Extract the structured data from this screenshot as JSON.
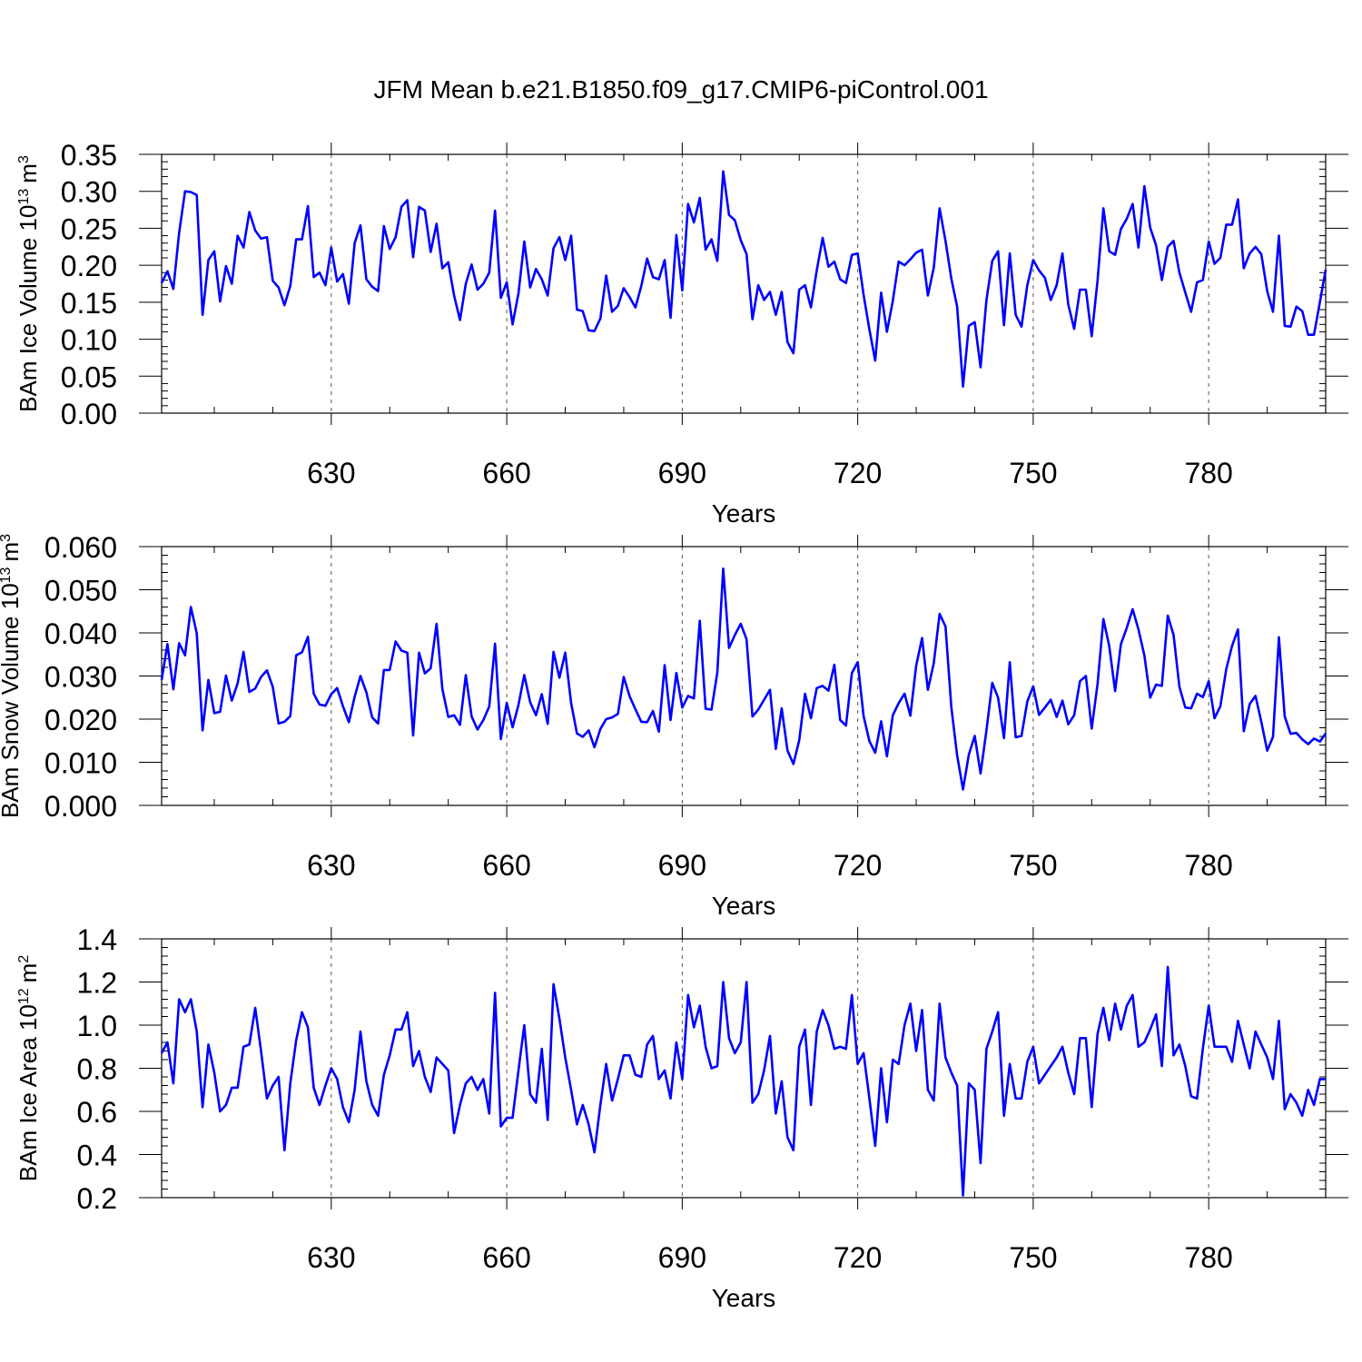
{
  "title": "JFM Mean b.e21.B1850.f09_g17.CMIP6-piControl.001",
  "line_color": "#0000ff",
  "chart_data": [
    {
      "type": "line",
      "xlabel": "Years",
      "ylabel": "BAm Ice Volume 10",
      "ylabel_exp": "13",
      "ylabel_unit": "m",
      "ylabel_unit_exp": "3",
      "xlim": [
        601,
        800
      ],
      "ylim": [
        0,
        0.35
      ],
      "xticks": [
        630,
        660,
        690,
        720,
        750,
        780
      ],
      "yticks": [
        "0.00",
        "0.05",
        "0.10",
        "0.15",
        "0.20",
        "0.25",
        "0.30",
        "0.35"
      ],
      "grid": "vertical dashed at major x ticks",
      "x_start": 601,
      "values": [
        0.176,
        0.192,
        0.168,
        0.244,
        0.3,
        0.299,
        0.295,
        0.133,
        0.207,
        0.219,
        0.151,
        0.199,
        0.175,
        0.24,
        0.224,
        0.272,
        0.247,
        0.236,
        0.238,
        0.179,
        0.17,
        0.146,
        0.172,
        0.235,
        0.235,
        0.28,
        0.184,
        0.19,
        0.173,
        0.224,
        0.178,
        0.188,
        0.148,
        0.23,
        0.254,
        0.181,
        0.171,
        0.165,
        0.253,
        0.222,
        0.238,
        0.279,
        0.288,
        0.211,
        0.279,
        0.274,
        0.218,
        0.256,
        0.196,
        0.204,
        0.159,
        0.126,
        0.175,
        0.201,
        0.167,
        0.175,
        0.19,
        0.274,
        0.156,
        0.177,
        0.12,
        0.162,
        0.232,
        0.17,
        0.195,
        0.181,
        0.159,
        0.223,
        0.238,
        0.207,
        0.24,
        0.14,
        0.138,
        0.112,
        0.111,
        0.128,
        0.186,
        0.137,
        0.145,
        0.169,
        0.157,
        0.143,
        0.172,
        0.209,
        0.184,
        0.181,
        0.207,
        0.129,
        0.241,
        0.166,
        0.283,
        0.258,
        0.291,
        0.221,
        0.235,
        0.206,
        0.327,
        0.268,
        0.261,
        0.234,
        0.215,
        0.127,
        0.173,
        0.153,
        0.164,
        0.133,
        0.164,
        0.096,
        0.081,
        0.167,
        0.173,
        0.143,
        0.193,
        0.237,
        0.198,
        0.205,
        0.181,
        0.176,
        0.214,
        0.216,
        0.16,
        0.113,
        0.071,
        0.163,
        0.11,
        0.152,
        0.205,
        0.2,
        0.208,
        0.217,
        0.221,
        0.159,
        0.197,
        0.277,
        0.233,
        0.182,
        0.144,
        0.036,
        0.118,
        0.123,
        0.062,
        0.153,
        0.206,
        0.219,
        0.119,
        0.216,
        0.133,
        0.117,
        0.173,
        0.207,
        0.193,
        0.183,
        0.153,
        0.173,
        0.216,
        0.147,
        0.114,
        0.167,
        0.167,
        0.104,
        0.18,
        0.277,
        0.219,
        0.214,
        0.249,
        0.263,
        0.283,
        0.224,
        0.307,
        0.251,
        0.227,
        0.18,
        0.225,
        0.233,
        0.19,
        0.163,
        0.137,
        0.177,
        0.18,
        0.232,
        0.202,
        0.21,
        0.255,
        0.255,
        0.289,
        0.196,
        0.216,
        0.225,
        0.215,
        0.165,
        0.137,
        0.24,
        0.118,
        0.117,
        0.144,
        0.138,
        0.106,
        0.106,
        0.15,
        0.194
      ]
    },
    {
      "type": "line",
      "xlabel": "Years",
      "ylabel": "BAm Snow Volume 10",
      "ylabel_exp": "13",
      "ylabel_unit": "m",
      "ylabel_unit_exp": "3",
      "xlim": [
        601,
        800
      ],
      "ylim": [
        0,
        0.06
      ],
      "xticks": [
        630,
        660,
        690,
        720,
        750,
        780
      ],
      "yticks": [
        "0.000",
        "0.010",
        "0.020",
        "0.030",
        "0.040",
        "0.050",
        "0.060"
      ],
      "grid": "vertical dashed at major x ticks",
      "x_start": 601,
      "values": [
        0.0291,
        0.0374,
        0.0269,
        0.0376,
        0.0348,
        0.046,
        0.0399,
        0.0174,
        0.0291,
        0.0214,
        0.0217,
        0.0301,
        0.0243,
        0.0283,
        0.0356,
        0.0263,
        0.0271,
        0.0298,
        0.0313,
        0.0275,
        0.019,
        0.0194,
        0.0207,
        0.0348,
        0.0355,
        0.0391,
        0.0259,
        0.0234,
        0.0231,
        0.0258,
        0.0272,
        0.023,
        0.0193,
        0.0252,
        0.03,
        0.0262,
        0.0204,
        0.019,
        0.0314,
        0.0314,
        0.038,
        0.0359,
        0.0354,
        0.0162,
        0.0354,
        0.0306,
        0.0318,
        0.0421,
        0.027,
        0.0205,
        0.0209,
        0.0187,
        0.0302,
        0.0206,
        0.0176,
        0.0198,
        0.0229,
        0.0375,
        0.0154,
        0.0238,
        0.0181,
        0.0233,
        0.0302,
        0.0239,
        0.0209,
        0.0258,
        0.0189,
        0.0356,
        0.0296,
        0.0354,
        0.0237,
        0.0167,
        0.0159,
        0.0174,
        0.0135,
        0.0177,
        0.02,
        0.0204,
        0.0212,
        0.0298,
        0.0253,
        0.0223,
        0.0194,
        0.0193,
        0.0219,
        0.0171,
        0.0325,
        0.0198,
        0.0307,
        0.0227,
        0.0254,
        0.0248,
        0.0428,
        0.0224,
        0.0222,
        0.0308,
        0.0549,
        0.0365,
        0.0395,
        0.0421,
        0.0385,
        0.0206,
        0.0222,
        0.0245,
        0.0268,
        0.0131,
        0.0225,
        0.0127,
        0.0096,
        0.0151,
        0.0259,
        0.0202,
        0.0272,
        0.0277,
        0.0266,
        0.0326,
        0.0198,
        0.0185,
        0.0307,
        0.0332,
        0.0207,
        0.0149,
        0.0122,
        0.0195,
        0.0114,
        0.0209,
        0.0237,
        0.0259,
        0.0208,
        0.0324,
        0.0388,
        0.0268,
        0.033,
        0.0444,
        0.0415,
        0.0228,
        0.0116,
        0.0037,
        0.0118,
        0.0161,
        0.0074,
        0.0174,
        0.0284,
        0.025,
        0.0156,
        0.0332,
        0.0158,
        0.0161,
        0.0241,
        0.0276,
        0.021,
        0.0227,
        0.0245,
        0.0205,
        0.0243,
        0.0188,
        0.0209,
        0.0288,
        0.03,
        0.0178,
        0.0282,
        0.0432,
        0.037,
        0.0265,
        0.0374,
        0.0412,
        0.0455,
        0.0408,
        0.0348,
        0.025,
        0.028,
        0.0277,
        0.044,
        0.0395,
        0.0275,
        0.0227,
        0.0225,
        0.0259,
        0.0251,
        0.0288,
        0.0202,
        0.023,
        0.0316,
        0.037,
        0.0408,
        0.0172,
        0.0235,
        0.0254,
        0.0194,
        0.0127,
        0.0159,
        0.039,
        0.0206,
        0.0166,
        0.0168,
        0.0153,
        0.0142,
        0.0155,
        0.0148,
        0.0167
      ]
    },
    {
      "type": "line",
      "xlabel": "Years",
      "ylabel": "BAm Ice Area 10",
      "ylabel_exp": "12",
      "ylabel_unit": "m",
      "ylabel_unit_exp": "2",
      "xlim": [
        601,
        800
      ],
      "ylim": [
        0.2,
        1.4
      ],
      "xticks": [
        630,
        660,
        690,
        720,
        750,
        780
      ],
      "yticks": [
        "0.2",
        "0.4",
        "0.6",
        "0.8",
        "1.0",
        "1.2",
        "1.4"
      ],
      "grid": "vertical dashed at major x ticks",
      "x_start": 601,
      "values": [
        0.87,
        0.92,
        0.73,
        1.12,
        1.06,
        1.12,
        0.97,
        0.62,
        0.91,
        0.78,
        0.6,
        0.63,
        0.71,
        0.71,
        0.9,
        0.91,
        1.08,
        0.88,
        0.66,
        0.72,
        0.76,
        0.42,
        0.73,
        0.93,
        1.06,
        0.99,
        0.71,
        0.63,
        0.72,
        0.8,
        0.75,
        0.62,
        0.55,
        0.7,
        0.97,
        0.74,
        0.63,
        0.58,
        0.77,
        0.86,
        0.98,
        0.98,
        1.06,
        0.81,
        0.88,
        0.76,
        0.69,
        0.85,
        0.82,
        0.79,
        0.5,
        0.63,
        0.73,
        0.76,
        0.7,
        0.75,
        0.59,
        1.15,
        0.53,
        0.57,
        0.57,
        0.79,
        1.0,
        0.68,
        0.64,
        0.89,
        0.56,
        1.19,
        1.03,
        0.85,
        0.7,
        0.54,
        0.63,
        0.54,
        0.41,
        0.63,
        0.82,
        0.65,
        0.75,
        0.86,
        0.86,
        0.77,
        0.76,
        0.91,
        0.95,
        0.75,
        0.79,
        0.66,
        0.92,
        0.75,
        1.14,
        0.99,
        1.09,
        0.9,
        0.8,
        0.81,
        1.2,
        0.94,
        0.87,
        0.92,
        1.2,
        0.64,
        0.68,
        0.79,
        0.95,
        0.59,
        0.74,
        0.48,
        0.42,
        0.9,
        0.98,
        0.63,
        0.97,
        1.07,
        1.0,
        0.89,
        0.9,
        0.89,
        1.14,
        0.82,
        0.87,
        0.66,
        0.44,
        0.8,
        0.55,
        0.84,
        0.82,
        1.0,
        1.1,
        0.88,
        1.07,
        0.7,
        0.65,
        1.1,
        0.85,
        0.78,
        0.72,
        0.21,
        0.73,
        0.7,
        0.36,
        0.89,
        0.97,
        1.06,
        0.58,
        0.82,
        0.66,
        0.66,
        0.83,
        0.9,
        0.73,
        0.77,
        0.81,
        0.85,
        0.9,
        0.78,
        0.68,
        0.94,
        0.94,
        0.62,
        0.96,
        1.08,
        0.93,
        1.1,
        0.98,
        1.09,
        1.14,
        0.9,
        0.92,
        0.98,
        1.05,
        0.81,
        1.27,
        0.86,
        0.91,
        0.81,
        0.67,
        0.66,
        0.89,
        1.09,
        0.9,
        0.9,
        0.9,
        0.83,
        1.02,
        0.91,
        0.8,
        0.97,
        0.91,
        0.85,
        0.75,
        1.02,
        0.61,
        0.68,
        0.64,
        0.58,
        0.7,
        0.63,
        0.75,
        0.75
      ]
    }
  ]
}
